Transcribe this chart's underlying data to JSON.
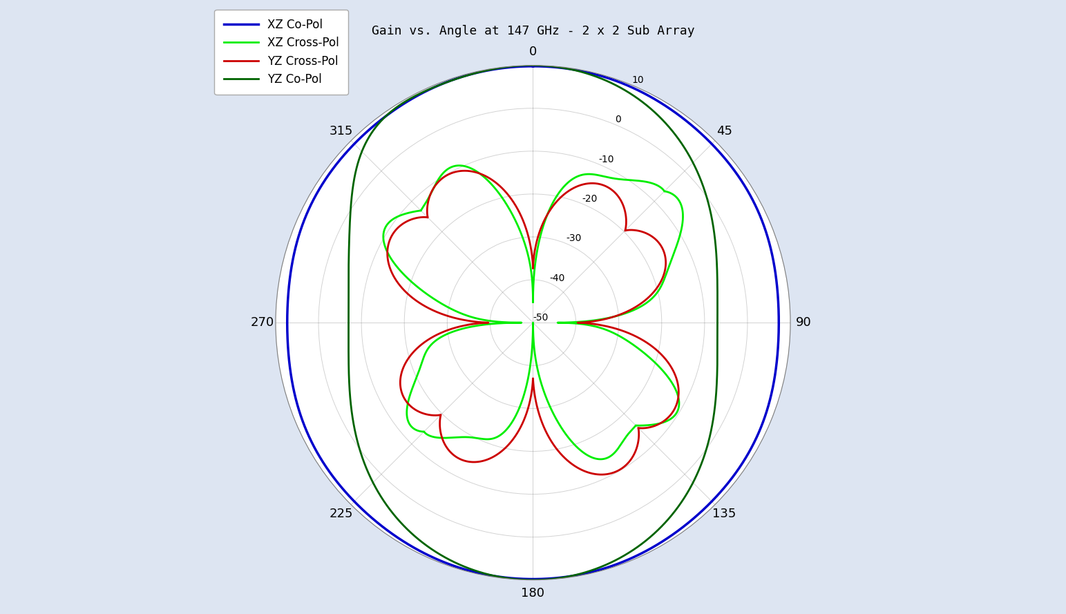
{
  "title": "Gain vs. Angle at 147 GHz - 2 x 2 Sub Array",
  "legend_labels": [
    "XZ Co-Pol",
    "XZ Cross-Pol",
    "YZ Cross-Pol",
    "YZ Co-Pol"
  ],
  "colors": [
    "#0000CC",
    "#00EE00",
    "#CC0000",
    "#006400"
  ],
  "linewidths": [
    2.5,
    2.0,
    2.0,
    2.0
  ],
  "radial_min": -50,
  "radial_max": 10,
  "radial_ticks": [
    10,
    0,
    -10,
    -20,
    -30,
    -40,
    -50
  ],
  "angle_ticks_deg": [
    0,
    45,
    90,
    135,
    180,
    225,
    270,
    315
  ],
  "bg_color": "#dde5f2",
  "figure_size": [
    15.43,
    8.89
  ],
  "dpi": 100
}
